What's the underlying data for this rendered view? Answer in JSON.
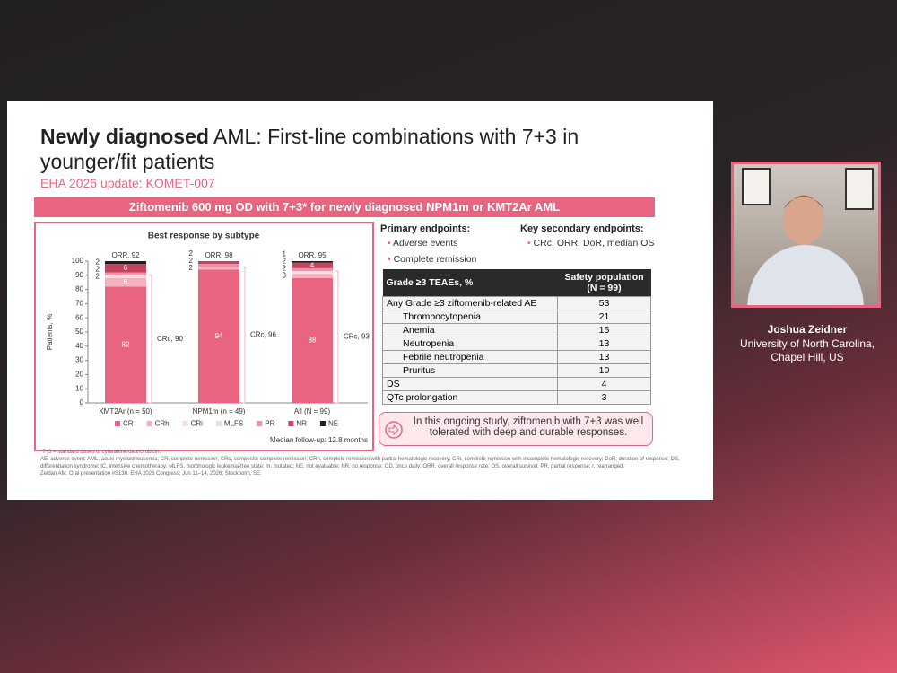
{
  "slide": {
    "title_bold": "Newly diagnosed",
    "title_rest": " AML: First-line combinations with 7+3 in younger/fit patients",
    "subtitle": "EHA 2026 update: KOMET-007",
    "banner": "Ziftomenib 600 mg OD with 7+3* for newly diagnosed NPM1m or KMT2Ar AML",
    "primary_heading": "Primary endpoints:",
    "primary_items": [
      "Adverse events",
      "Complete remission"
    ],
    "secondary_heading": "Key secondary endpoints:",
    "secondary_items": [
      "CRc, ORR, DoR, median OS"
    ],
    "table": {
      "header": [
        "Grade ≥3 TEAEs, %",
        "Safety population (N = 99)"
      ],
      "rows": [
        [
          "Any Grade ≥3 ziftomenib-related AE",
          "53"
        ],
        [
          "Thrombocytopenia",
          "21"
        ],
        [
          "Anemia",
          "15"
        ],
        [
          "Neutropenia",
          "13"
        ],
        [
          "Febrile neutropenia",
          "13"
        ],
        [
          "Pruritus",
          "10"
        ],
        [
          "DS",
          "4"
        ],
        [
          "QTc prolongation",
          "3"
        ]
      ]
    },
    "callout": "In this ongoing study, ziftomenib with 7+3 was well tolerated with deep and durable responses.",
    "footnotes": [
      "*7+3 = standard doses of cytarabine/daunorubicin.",
      "AE, adverse event; AML, acute myeloid leukemia; CR, complete remission; CRc, composite complete remission; CRh, complete remission with partial hematologic recovery; CRi, complete remission with incomplete hematologic recovery; DoR, duration of response; DS, differentiation syndrome; IC, intensive chemotherapy; MLFS, morphologic leukemia-free state; m, mutated; NE, not evaluable; NR, no response; OD, once daily; ORR, overall response rate; OS, overall survival; PR, partial response; r, rearranged.",
      "Zeidan AM. Oral presentation #S130. EHA 2026 Congress; Jun 11–14, 2026; Stockholm, SE."
    ]
  },
  "speaker": {
    "name": "Joshua Zeidner",
    "affiliation": "University of North Carolina, Chapel Hill, US"
  },
  "chart_data": {
    "type": "stacked_bar",
    "title": "Best response by subtype",
    "y_label": "Patients, %",
    "note": "Median follow-up: 12.8 months",
    "categories": [
      "KMT2Ar (n = 50)",
      "NPM1m (n = 49)",
      "All (N = 99)"
    ],
    "orr_labels": [
      "ORR, 92",
      "ORR, 98",
      "ORR, 95"
    ],
    "crc_labels": [
      "CRc, 90",
      "CRc, 96",
      "CRc, 93"
    ],
    "ylim": [
      0,
      100
    ],
    "yticks": [
      0,
      10,
      20,
      30,
      40,
      50,
      60,
      70,
      80,
      90,
      100
    ],
    "series": [
      {
        "name": "CR",
        "color": "#e8647f",
        "values": [
          82,
          94,
          88
        ]
      },
      {
        "name": "CRh",
        "color": "#f3b1bf",
        "values": [
          6,
          2,
          3
        ]
      },
      {
        "name": "CRi",
        "color": "#fadde4",
        "values": [
          2,
          0,
          2
        ]
      },
      {
        "name": "MLFS",
        "color": "#e4e4e4",
        "values": [
          0,
          0,
          0
        ]
      },
      {
        "name": "PR",
        "color": "#f291a6",
        "values": [
          2,
          2,
          2
        ]
      },
      {
        "name": "NR",
        "color": "#c2445f",
        "values": [
          6,
          2,
          4
        ]
      },
      {
        "name": "NE",
        "color": "#1e1e1e",
        "values": [
          2,
          0,
          1
        ]
      }
    ]
  }
}
